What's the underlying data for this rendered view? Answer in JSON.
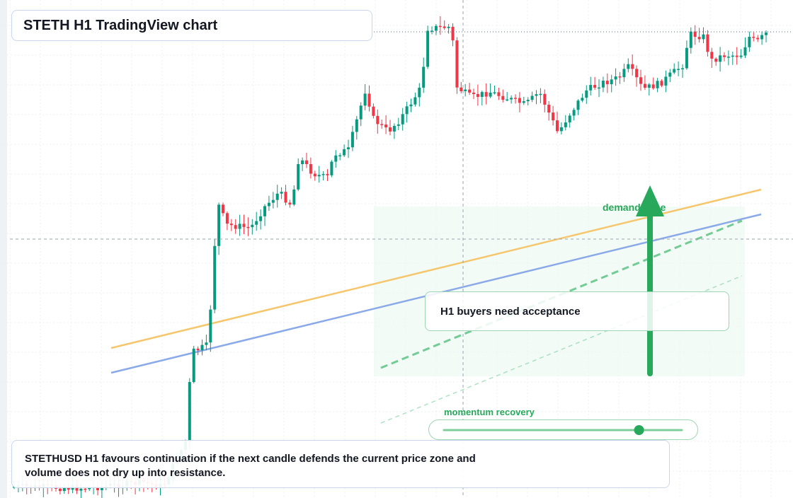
{
  "header": {
    "title": "STETH H1 TradingView chart"
  },
  "chart": {
    "symbol": "STETHUSD",
    "timeframe": "H1",
    "colors": {
      "up": "#089981",
      "down": "#f23645",
      "ma_fast": "#f5c66b",
      "ma_slow": "#8aa9e8",
      "signal": "#27a85a"
    }
  },
  "annotations": {
    "demand_label": "demand  zone",
    "callout": "H1 buyers need acceptance",
    "momentum_label": "momentum recovery",
    "momentum_level": 0.82
  },
  "footer_note": "STETHUSD H1 favours continuation if the next candle defends the current price zone and volume does not dry up into resistance."
}
